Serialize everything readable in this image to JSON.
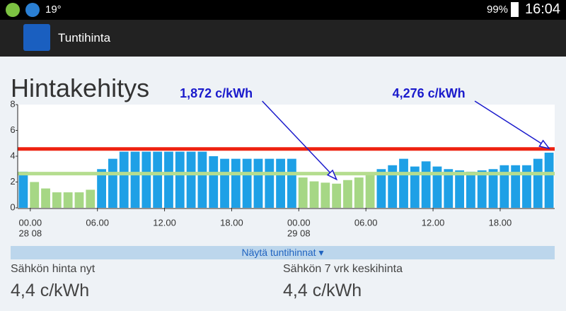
{
  "status_bar": {
    "temperature": "19°",
    "battery": "99%",
    "time": "16:04"
  },
  "app_bar": {
    "title": "Tuntihinta"
  },
  "heading": "Hintakehitys",
  "chart_data": {
    "type": "bar",
    "categories": [
      null,
      "00.00",
      null,
      null,
      null,
      null,
      null,
      "06.00",
      null,
      null,
      null,
      null,
      null,
      "12.00",
      null,
      null,
      null,
      null,
      null,
      "18.00",
      null,
      null,
      null,
      null,
      null,
      "00.00",
      null,
      null,
      null,
      null,
      null,
      "06.00",
      null,
      null,
      null,
      null,
      null,
      "12.00",
      null,
      null,
      null,
      null,
      null,
      "18.00",
      null,
      null,
      null,
      null
    ],
    "dates": [
      null,
      "28 08",
      null,
      null,
      null,
      null,
      null,
      null,
      null,
      null,
      null,
      null,
      null,
      null,
      null,
      null,
      null,
      null,
      null,
      null,
      null,
      null,
      null,
      null,
      null,
      "29 08",
      null,
      null,
      null,
      null,
      null,
      null,
      null,
      null,
      null,
      null,
      null,
      null,
      null,
      null,
      null,
      null,
      null,
      null,
      null,
      null,
      null,
      null
    ],
    "values": [
      2.8,
      2.0,
      1.5,
      1.2,
      1.2,
      1.2,
      1.4,
      3.0,
      3.8,
      4.35,
      4.35,
      4.35,
      4.35,
      4.35,
      4.35,
      4.35,
      4.35,
      4.0,
      3.8,
      3.8,
      3.8,
      3.8,
      3.8,
      3.8,
      3.8,
      2.35,
      2.05,
      1.95,
      1.872,
      2.15,
      2.35,
      2.6,
      3.0,
      3.3,
      3.8,
      3.2,
      3.6,
      3.2,
      3.0,
      2.9,
      2.8,
      2.9,
      3.0,
      3.3,
      3.3,
      3.3,
      3.8,
      4.276
    ],
    "value_labels": [
      null,
      null,
      null,
      null,
      null,
      null,
      null,
      null,
      null,
      null,
      null,
      null,
      null,
      null,
      null,
      null,
      null,
      null,
      null,
      null,
      null,
      null,
      null,
      null,
      null,
      null,
      null,
      null,
      "1,872 c/kWh",
      null,
      null,
      null,
      null,
      null,
      null,
      null,
      null,
      null,
      null,
      null,
      null,
      null,
      null,
      null,
      null,
      null,
      null,
      "4,276 c/kWh"
    ],
    "colors": [
      "#1ea0e6",
      "#a6d785",
      "#a6d785",
      "#a6d785",
      "#a6d785",
      "#a6d785",
      "#a6d785",
      "#1ea0e6",
      "#1ea0e6",
      "#1ea0e6",
      "#1ea0e6",
      "#1ea0e6",
      "#1ea0e6",
      "#1ea0e6",
      "#1ea0e6",
      "#1ea0e6",
      "#1ea0e6",
      "#1ea0e6",
      "#1ea0e6",
      "#1ea0e6",
      "#1ea0e6",
      "#1ea0e6",
      "#1ea0e6",
      "#1ea0e6",
      "#1ea0e6",
      "#a6d785",
      "#a6d785",
      "#a6d785",
      "#a6d785",
      "#a6d785",
      "#a6d785",
      "#a6d785",
      "#1ea0e6",
      "#1ea0e6",
      "#1ea0e6",
      "#1ea0e6",
      "#1ea0e6",
      "#1ea0e6",
      "#1ea0e6",
      "#1ea0e6",
      "#1ea0e6",
      "#1ea0e6",
      "#1ea0e6",
      "#1ea0e6",
      "#1ea0e6",
      "#1ea0e6",
      "#1ea0e6",
      "#1ea0e6"
    ],
    "reference_lines": [
      {
        "value": 4.56,
        "color": "#ee2211"
      },
      {
        "value": 2.65,
        "color": "#b5dd8f"
      }
    ],
    "ylim": [
      0,
      8
    ],
    "yticks": [
      0,
      2,
      4,
      6,
      8
    ]
  },
  "toggle": "Näytä tuntihinnat ▾",
  "stats": [
    {
      "label": "Sähkön hinta nyt",
      "value": "4,4 c/kWh"
    },
    {
      "label": "Sähkön 7 vrk keskihinta",
      "value": "4,4 c/kWh"
    }
  ]
}
